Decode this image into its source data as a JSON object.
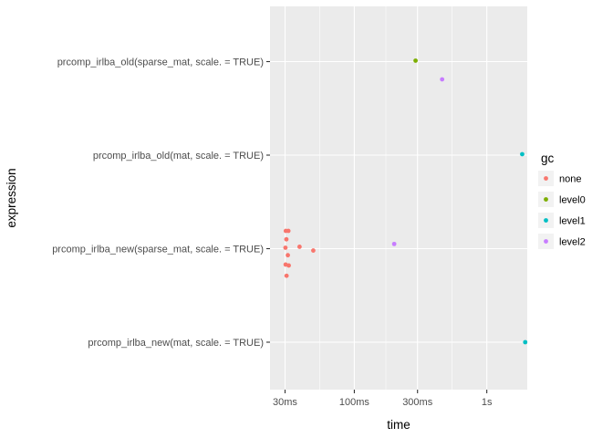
{
  "chart_data": {
    "type": "scatter",
    "xlabel": "time",
    "ylabel": "expression",
    "x_scale": "log10",
    "x_range_seconds": [
      0.0231,
      2.02
    ],
    "x_ticks": [
      {
        "value": 0.03,
        "label": "30ms"
      },
      {
        "value": 0.1,
        "label": "100ms"
      },
      {
        "value": 0.3,
        "label": "300ms"
      },
      {
        "value": 1,
        "label": "1s"
      }
    ],
    "x_minor_ticks": [
      0.0548,
      0.173,
      0.548
    ],
    "categories": [
      "prcomp_irlba_new(mat, scale. = TRUE)",
      "prcomp_irlba_new(sparse_mat, scale. = TRUE)",
      "prcomp_irlba_old(mat, scale. = TRUE)",
      "prcomp_irlba_old(sparse_mat, scale. = TRUE)"
    ],
    "grid": true,
    "legend": {
      "title": "gc",
      "position": "right",
      "entries": [
        {
          "name": "none",
          "color": "#F8766D"
        },
        {
          "name": "level0",
          "color": "#7CAE00"
        },
        {
          "name": "level1",
          "color": "#00BFC4"
        },
        {
          "name": "level2",
          "color": "#C77CFF"
        }
      ]
    },
    "points": [
      {
        "x": 0.0304,
        "category": 1,
        "jitter": 0.19,
        "gc": "none"
      },
      {
        "x": 0.0318,
        "category": 1,
        "jitter": 0.19,
        "gc": "none"
      },
      {
        "x": 0.0307,
        "category": 1,
        "jitter": 0.1,
        "gc": "none"
      },
      {
        "x": 0.0302,
        "category": 1,
        "jitter": 0.01,
        "gc": "none"
      },
      {
        "x": 0.0386,
        "category": 1,
        "jitter": 0.02,
        "gc": "none"
      },
      {
        "x": 0.049,
        "category": 1,
        "jitter": -0.02,
        "gc": "none"
      },
      {
        "x": 0.0315,
        "category": 1,
        "jitter": -0.07,
        "gc": "none"
      },
      {
        "x": 0.0303,
        "category": 1,
        "jitter": -0.17,
        "gc": "none"
      },
      {
        "x": 0.032,
        "category": 1,
        "jitter": -0.18,
        "gc": "none"
      },
      {
        "x": 0.0308,
        "category": 1,
        "jitter": -0.29,
        "gc": "none"
      },
      {
        "x": 0.2,
        "category": 1,
        "jitter": 0.05,
        "gc": "level2"
      },
      {
        "x": 1.85,
        "category": 2,
        "jitter": 0.01,
        "gc": "level1"
      },
      {
        "x": 0.29,
        "category": 3,
        "jitter": 0.01,
        "gc": "level0"
      },
      {
        "x": 0.46,
        "category": 3,
        "jitter": -0.19,
        "gc": "level2"
      },
      {
        "x": 1.95,
        "category": 0,
        "jitter": 0.0,
        "gc": "level1"
      }
    ]
  }
}
